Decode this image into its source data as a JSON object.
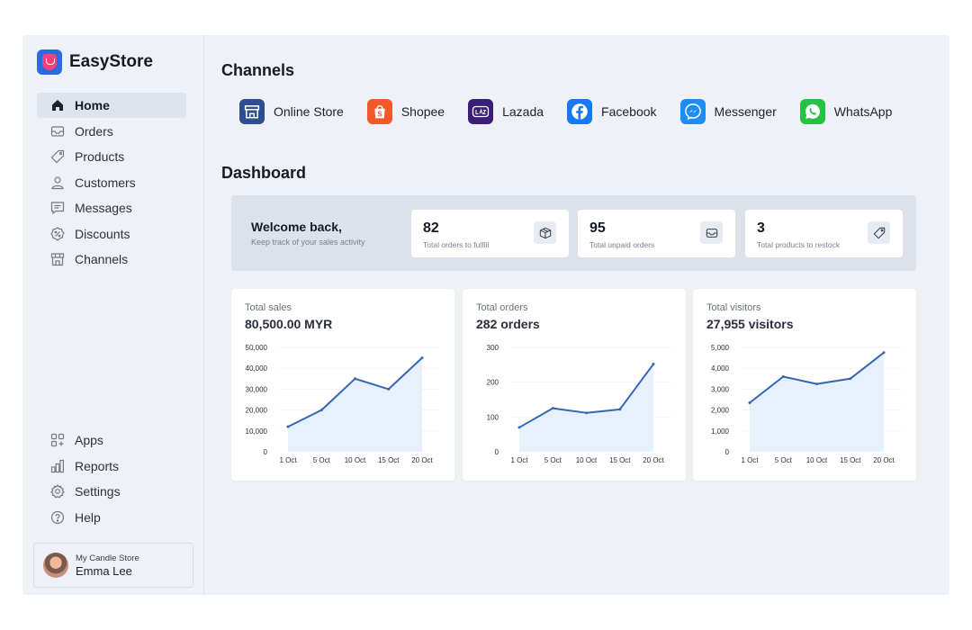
{
  "app": {
    "name": "EasyStore"
  },
  "sidebar": {
    "top_items": [
      {
        "label": "Home",
        "icon": "home-icon",
        "active": true
      },
      {
        "label": "Orders",
        "icon": "inbox-icon"
      },
      {
        "label": "Products",
        "icon": "tag-icon"
      },
      {
        "label": "Customers",
        "icon": "user-icon"
      },
      {
        "label": "Messages",
        "icon": "message-icon"
      },
      {
        "label": "Discounts",
        "icon": "discount-icon"
      },
      {
        "label": "Channels",
        "icon": "store-icon"
      }
    ],
    "bottom_items": [
      {
        "label": "Apps",
        "icon": "apps-icon"
      },
      {
        "label": "Reports",
        "icon": "reports-icon"
      },
      {
        "label": "Settings",
        "icon": "gear-icon"
      },
      {
        "label": "Help",
        "icon": "help-icon"
      }
    ],
    "user": {
      "store": "My Candle Store",
      "name": "Emma Lee"
    }
  },
  "channels": {
    "heading": "Channels",
    "items": [
      {
        "label": "Online Store",
        "icon": "online-store-icon",
        "color": "#2b4f8f"
      },
      {
        "label": "Shopee",
        "icon": "shopee-icon",
        "color": "#f2592a"
      },
      {
        "label": "Lazada",
        "icon": "lazada-icon",
        "color": "#3a1f7a"
      },
      {
        "label": "Facebook",
        "icon": "facebook-icon",
        "color": "#1877f2"
      },
      {
        "label": "Messenger",
        "icon": "messenger-icon",
        "color": "#1d8df5"
      },
      {
        "label": "WhatsApp",
        "icon": "whatsapp-icon",
        "color": "#25c244"
      }
    ]
  },
  "dashboard": {
    "heading": "Dashboard",
    "welcome": {
      "title": "Welcome back,",
      "subtitle": "Keep track of your sales activity"
    },
    "stats": [
      {
        "value": "82",
        "label": "Total orders to fulfill",
        "icon": "box-icon"
      },
      {
        "value": "95",
        "label": "Total unpaid orders",
        "icon": "inbox-icon"
      },
      {
        "value": "3",
        "label": "Total products to restock",
        "icon": "tag-icon"
      }
    ]
  },
  "chart_data": [
    {
      "type": "area",
      "title": "Total sales",
      "value_label": "80,500.00 MYR",
      "categories": [
        "1 Oct",
        "5 Oct",
        "10 Oct",
        "15 Oct",
        "20 Oct"
      ],
      "values": [
        12000,
        20000,
        35000,
        30000,
        45000
      ],
      "yticks": [
        "0",
        "10,000",
        "20,000",
        "30,000",
        "40,000",
        "50,000"
      ],
      "ylim": [
        0,
        50000
      ],
      "color": "#3565b6",
      "fill": "#e8f0fc"
    },
    {
      "type": "area",
      "title": "Total orders",
      "value_label": "282 orders",
      "categories": [
        "1 Oct",
        "5 Oct",
        "10 Oct",
        "15 Oct",
        "20 Oct"
      ],
      "values": [
        70,
        125,
        112,
        122,
        252
      ],
      "yticks": [
        "0",
        "100",
        "200",
        "300"
      ],
      "ylim": [
        0,
        300
      ],
      "color": "#3565b6",
      "fill": "#e8f0fc"
    },
    {
      "type": "area",
      "title": "Total visitors",
      "value_label": "27,955 visitors",
      "categories": [
        "1 Oct",
        "5 Oct",
        "10 Oct",
        "15 Oct",
        "20 Oct"
      ],
      "values": [
        2350,
        3600,
        3250,
        3500,
        4750
      ],
      "yticks": [
        "0",
        "1,000",
        "2,000",
        "3,000",
        "4,000",
        "5,000"
      ],
      "ylim": [
        0,
        5000
      ],
      "color": "#3565b6",
      "fill": "#e8f0fc"
    }
  ]
}
